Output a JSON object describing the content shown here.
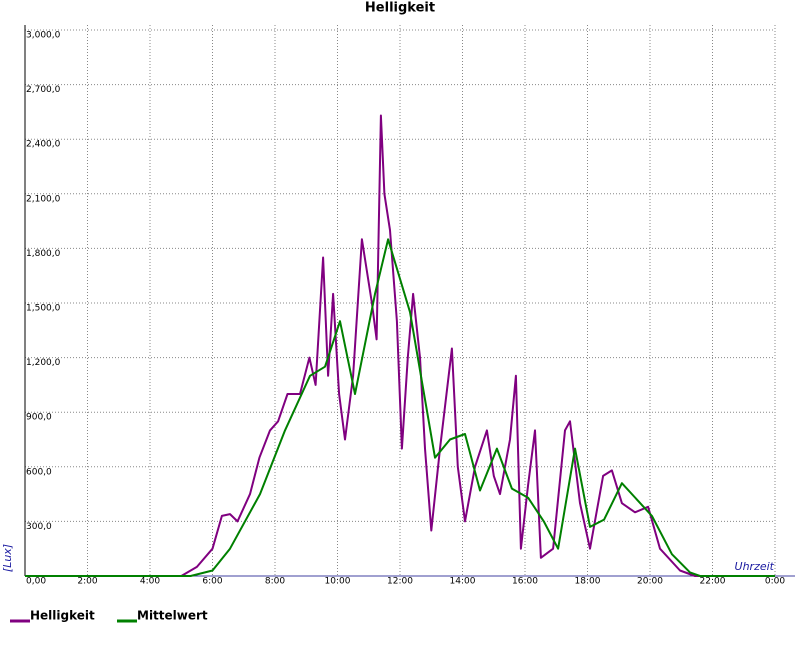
{
  "chart_data": {
    "type": "line",
    "title": "Helligkeit",
    "y_label": "[Lux]",
    "x_label": "Uhrzeit",
    "xlim": [
      0,
      24
    ],
    "ylim": [
      0,
      3000
    ],
    "xticks": [
      {
        "value": 0,
        "label": "0:00"
      },
      {
        "value": 2,
        "label": "2:00"
      },
      {
        "value": 4,
        "label": "4:00"
      },
      {
        "value": 6,
        "label": "6:00"
      },
      {
        "value": 8,
        "label": "8:00"
      },
      {
        "value": 10,
        "label": "10:00"
      },
      {
        "value": 12,
        "label": "12:00"
      },
      {
        "value": 14,
        "label": "14:00"
      },
      {
        "value": 16,
        "label": "16:00"
      },
      {
        "value": 18,
        "label": "18:00"
      },
      {
        "value": 20,
        "label": "20:00"
      },
      {
        "value": 22,
        "label": "22:00"
      },
      {
        "value": 24,
        "label": "0:00"
      }
    ],
    "yticks": [
      {
        "value": 0,
        "label": "0,00"
      },
      {
        "value": 300,
        "label": "300,0"
      },
      {
        "value": 600,
        "label": "600,0"
      },
      {
        "value": 900,
        "label": "900,0"
      },
      {
        "value": 1200,
        "label": "1,200,0"
      },
      {
        "value": 1500,
        "label": "1,500,0"
      },
      {
        "value": 1800,
        "label": "1,800,0"
      },
      {
        "value": 2100,
        "label": "2,100,0"
      },
      {
        "value": 2400,
        "label": "2,400,0"
      },
      {
        "value": 2700,
        "label": "2,700,0"
      },
      {
        "value": 3000,
        "label": "3,000,0"
      }
    ],
    "grid": true,
    "series": [
      {
        "name": "Helligkeit",
        "color": "#800080",
        "x": [
          0,
          5,
          5.5,
          6,
          6.3,
          6.56,
          6.8,
          7.2,
          7.5,
          7.84,
          8.1,
          8.4,
          8.8,
          9.1,
          9.3,
          9.54,
          9.7,
          9.86,
          10.05,
          10.24,
          10.5,
          10.78,
          11.1,
          11.25,
          11.39,
          11.5,
          11.68,
          11.9,
          12.06,
          12.25,
          12.42,
          12.64,
          12.8,
          13.0,
          13.28,
          13.66,
          13.85,
          14.08,
          14.4,
          14.78,
          15.0,
          15.2,
          15.52,
          15.71,
          15.87,
          16.1,
          16.32,
          16.51,
          16.9,
          17.28,
          17.44,
          17.76,
          18.08,
          18.5,
          18.78,
          19.1,
          19.52,
          19.94,
          20.32,
          20.96,
          21.44,
          24
        ],
        "values": [
          0,
          0,
          50,
          150,
          330,
          340,
          300,
          450,
          650,
          800,
          850,
          1000,
          1000,
          1200,
          1050,
          1750,
          1100,
          1550,
          1000,
          750,
          1100,
          1850,
          1500,
          1300,
          2530,
          2100,
          1900,
          1400,
          700,
          1200,
          1550,
          1200,
          700,
          250,
          700,
          1250,
          600,
          300,
          600,
          800,
          550,
          450,
          750,
          1100,
          150,
          500,
          800,
          100,
          150,
          800,
          850,
          400,
          150,
          550,
          580,
          400,
          350,
          380,
          150,
          30,
          0,
          0
        ]
      },
      {
        "name": "Mittelwert",
        "color": "#008000",
        "x": [
          0,
          5.3,
          6.0,
          6.56,
          7.52,
          8.32,
          9.12,
          9.6,
          10.08,
          10.56,
          11.2,
          11.62,
          12.32,
          13.12,
          13.6,
          14.08,
          14.56,
          15.1,
          15.58,
          16.1,
          16.6,
          17.06,
          17.6,
          18.08,
          18.53,
          19.1,
          20.06,
          20.7,
          21.28,
          21.6,
          24
        ],
        "values": [
          0,
          0,
          30,
          150,
          450,
          800,
          1100,
          1150,
          1400,
          1000,
          1550,
          1850,
          1450,
          650,
          750,
          780,
          470,
          700,
          480,
          430,
          300,
          150,
          700,
          270,
          310,
          510,
          330,
          120,
          20,
          0,
          0
        ]
      }
    ]
  }
}
